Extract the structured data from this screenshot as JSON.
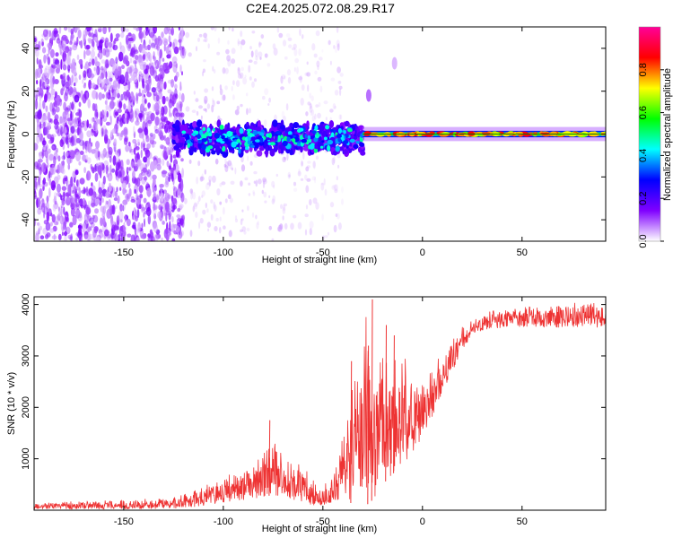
{
  "figure": {
    "title": "C2E4.2025.072.08.29.R17"
  },
  "chart_data": [
    {
      "type": "heatmap",
      "xlabel": "Height of straight line (km)",
      "ylabel": "Frequency (Hz)",
      "xlim": [
        -195,
        92
      ],
      "ylim": [
        -50,
        50
      ],
      "xticks": [
        -150,
        -100,
        -50,
        0,
        50
      ],
      "yticks": [
        -40,
        -20,
        0,
        20,
        40
      ],
      "colorbar": {
        "label": "Normalized spectral amplitude",
        "range": [
          0,
          1
        ],
        "ticks": [
          0.0,
          0.2,
          0.4,
          0.6,
          0.8
        ],
        "tick_labels": [
          "0.0",
          "0.2",
          "0.4",
          "0.6",
          "0.8"
        ],
        "colormap": [
          "#ffffff",
          "#8000ff",
          "#0000ff",
          "#00ffff",
          "#00ff00",
          "#ffff00",
          "#ff0000",
          "#ff0099"
        ]
      },
      "regions": [
        {
          "name": "noise",
          "x": [
            -195,
            -120
          ],
          "freq_half_width": 50,
          "amplitude": 0.1
        },
        {
          "name": "sparse",
          "x": [
            -120,
            -40
          ],
          "freq_half_width": 50,
          "amplitude": 0.05
        },
        {
          "name": "band-spotty",
          "x": [
            -125,
            -30
          ],
          "center": -2,
          "half_width": 6,
          "amplitude": [
            0.2,
            0.5
          ]
        },
        {
          "name": "band-strong",
          "x": [
            -30,
            92
          ],
          "center": 0,
          "half_width": 1.5,
          "amplitude": [
            0.6,
            0.9
          ]
        }
      ],
      "features": [
        {
          "x": -27,
          "freq": 18,
          "amplitude": 0.1
        },
        {
          "x": -14,
          "freq": 33,
          "amplitude": 0.05
        }
      ]
    },
    {
      "type": "line",
      "xlabel": "Height of straight line (km)",
      "ylabel": "SNR (10 * v/v)",
      "xlim": [
        -195,
        92
      ],
      "ylim": [
        0,
        4150
      ],
      "xticks": [
        -150,
        -100,
        -50,
        0,
        50
      ],
      "yticks": [
        1000,
        2000,
        3000,
        4000
      ],
      "color": "#ee3333",
      "envelope": {
        "x": [
          -195,
          -150,
          -125,
          -110,
          -100,
          -90,
          -80,
          -75,
          -70,
          -60,
          -55,
          -50,
          -45,
          -40,
          -35,
          -30,
          -28,
          -25,
          -20,
          -15,
          -10,
          -5,
          0,
          5,
          10,
          15,
          20,
          25,
          30,
          40,
          50,
          60,
          70,
          80,
          92
        ],
        "lower": [
          20,
          20,
          30,
          80,
          150,
          200,
          250,
          300,
          250,
          150,
          100,
          80,
          100,
          300,
          100,
          200,
          100,
          200,
          500,
          700,
          900,
          1100,
          1400,
          1800,
          2300,
          2700,
          3100,
          3400,
          3500,
          3550,
          3550,
          3550,
          3550,
          3550,
          3550
        ],
        "upper": [
          150,
          200,
          250,
          500,
          650,
          800,
          1200,
          1500,
          1100,
          900,
          600,
          500,
          700,
          1500,
          2800,
          3200,
          4100,
          2500,
          3300,
          3000,
          3100,
          2800,
          2800,
          2900,
          3100,
          3400,
          3600,
          3700,
          3850,
          3950,
          4000,
          4000,
          4050,
          4100,
          4050
        ]
      },
      "spikes": [
        {
          "x": -25.5,
          "y": 4100
        },
        {
          "x": -18.5,
          "y": 3600
        },
        {
          "x": -27.5,
          "y": 3200
        },
        {
          "x": -14.5,
          "y": 3400
        },
        {
          "x": -36,
          "y": 2900
        },
        {
          "x": -77,
          "y": 1750
        }
      ]
    }
  ]
}
